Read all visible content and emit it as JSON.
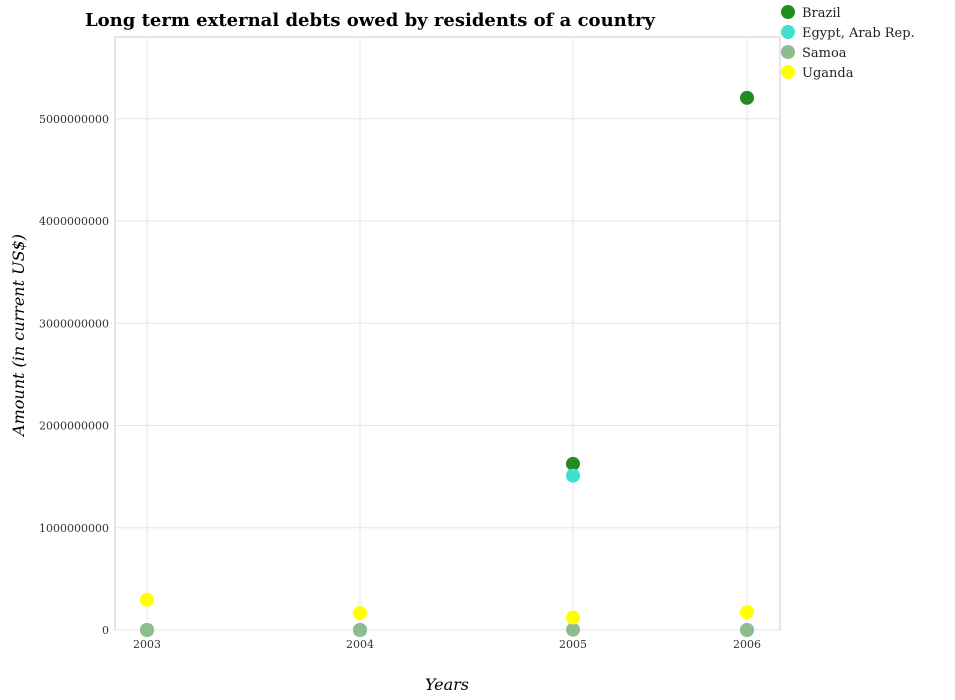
{
  "chart_data": {
    "type": "scatter",
    "title": "Long term external debts owed by residents of a country",
    "xlabel": "Years",
    "ylabel": "Amount (in current US$)",
    "categories": [
      "2003",
      "2004",
      "2005",
      "2006"
    ],
    "ylim": [
      0,
      5800000000
    ],
    "yticks": [
      0,
      1000000000,
      2000000000,
      3000000000,
      4000000000,
      5000000000
    ],
    "ytick_labels": [
      "0",
      "1000000000",
      "2000000000",
      "3000000000",
      "4000000000",
      "5000000000"
    ],
    "grid": true,
    "legend_position": "top-right",
    "series": [
      {
        "name": "Brazil",
        "color": "#228b22",
        "values": [
          0,
          0,
          1625000000,
          5205000000
        ]
      },
      {
        "name": "Egypt, Arab Rep.",
        "color": "#40e0d0",
        "values": [
          0,
          0,
          1510000000,
          0
        ]
      },
      {
        "name": "Samoa",
        "color": "#8fbc8f",
        "values": [
          0,
          0,
          3000000,
          0
        ]
      },
      {
        "name": "Uganda",
        "color": "#ffff00",
        "values": [
          295000000,
          165000000,
          122000000,
          175000000
        ]
      }
    ]
  }
}
